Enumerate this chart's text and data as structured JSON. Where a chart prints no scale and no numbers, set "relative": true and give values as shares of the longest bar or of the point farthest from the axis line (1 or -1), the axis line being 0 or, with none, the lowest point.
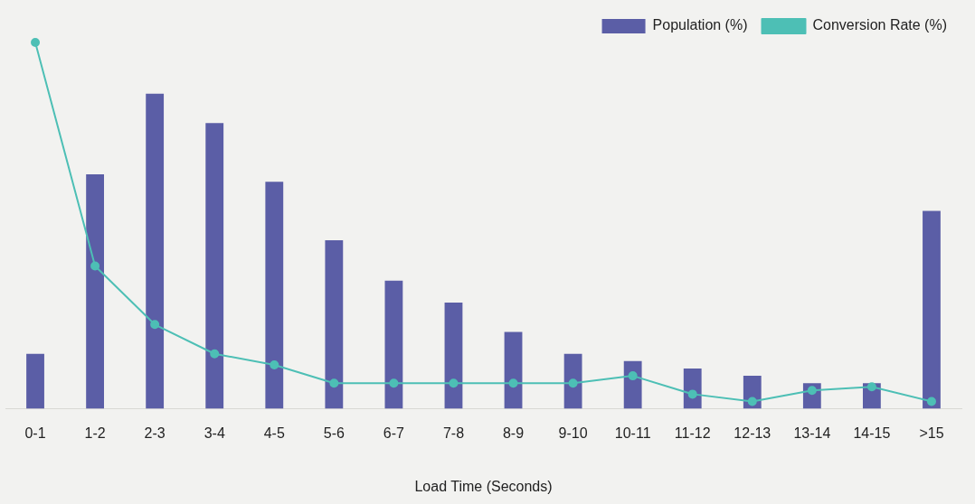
{
  "chart_data": {
    "type": "bar",
    "relative": true,
    "xlabel": "Load Time (Seconds)",
    "categories": [
      "0-1",
      "1-2",
      "2-3",
      "3-4",
      "4-5",
      "5-6",
      "6-7",
      "7-8",
      "8-9",
      "9-10",
      "10-11",
      "11-12",
      "12-13",
      "13-14",
      "14-15",
      ">15"
    ],
    "series": [
      {
        "name": "Population (%)",
        "type": "bar",
        "color": "#5b5ea6",
        "values": [
          0.15,
          0.64,
          0.86,
          0.78,
          0.62,
          0.46,
          0.35,
          0.29,
          0.21,
          0.15,
          0.13,
          0.11,
          0.09,
          0.07,
          0.07,
          0.54
        ]
      },
      {
        "name": "Conversion Rate (%)",
        "type": "line",
        "color": "#4dbfb5",
        "values": [
          1.0,
          0.39,
          0.23,
          0.15,
          0.12,
          0.07,
          0.07,
          0.07,
          0.07,
          0.07,
          0.09,
          0.04,
          0.02,
          0.05,
          0.06,
          0.02
        ]
      }
    ],
    "legend": "top right",
    "marker": "circle",
    "line_style": "solid",
    "grid": false
  }
}
